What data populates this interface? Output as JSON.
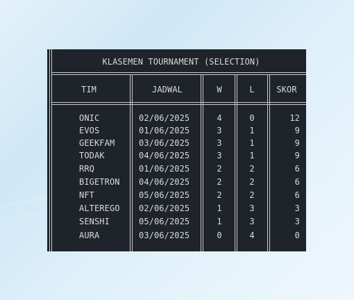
{
  "table": {
    "title": "KLASEMEN TOURNAMENT (SELECTION)",
    "headers": {
      "team": "TIM",
      "schedule": "JADWAL",
      "win": "W",
      "loss": "L",
      "score": "SKOR"
    },
    "rows": [
      {
        "team": "ONIC",
        "date": "02/06/2025",
        "w": "4",
        "l": "0",
        "score": "12"
      },
      {
        "team": "EVOS",
        "date": "01/06/2025",
        "w": "3",
        "l": "1",
        "score": "9"
      },
      {
        "team": "GEEKFAM",
        "date": "03/06/2025",
        "w": "3",
        "l": "1",
        "score": "9"
      },
      {
        "team": "TODAK",
        "date": "04/06/2025",
        "w": "3",
        "l": "1",
        "score": "9"
      },
      {
        "team": "RRQ",
        "date": "01/06/2025",
        "w": "2",
        "l": "2",
        "score": "6"
      },
      {
        "team": "BIGETRON",
        "date": "04/06/2025",
        "w": "2",
        "l": "2",
        "score": "6"
      },
      {
        "team": "NFT",
        "date": "05/06/2025",
        "w": "2",
        "l": "2",
        "score": "6"
      },
      {
        "team": "ALTEREGO",
        "date": "02/06/2025",
        "w": "1",
        "l": "3",
        "score": "3"
      },
      {
        "team": "SENSHI",
        "date": "05/06/2025",
        "w": "1",
        "l": "3",
        "score": "3"
      },
      {
        "team": "AURA",
        "date": "03/06/2025",
        "w": "0",
        "l": "4",
        "score": "0"
      }
    ]
  }
}
